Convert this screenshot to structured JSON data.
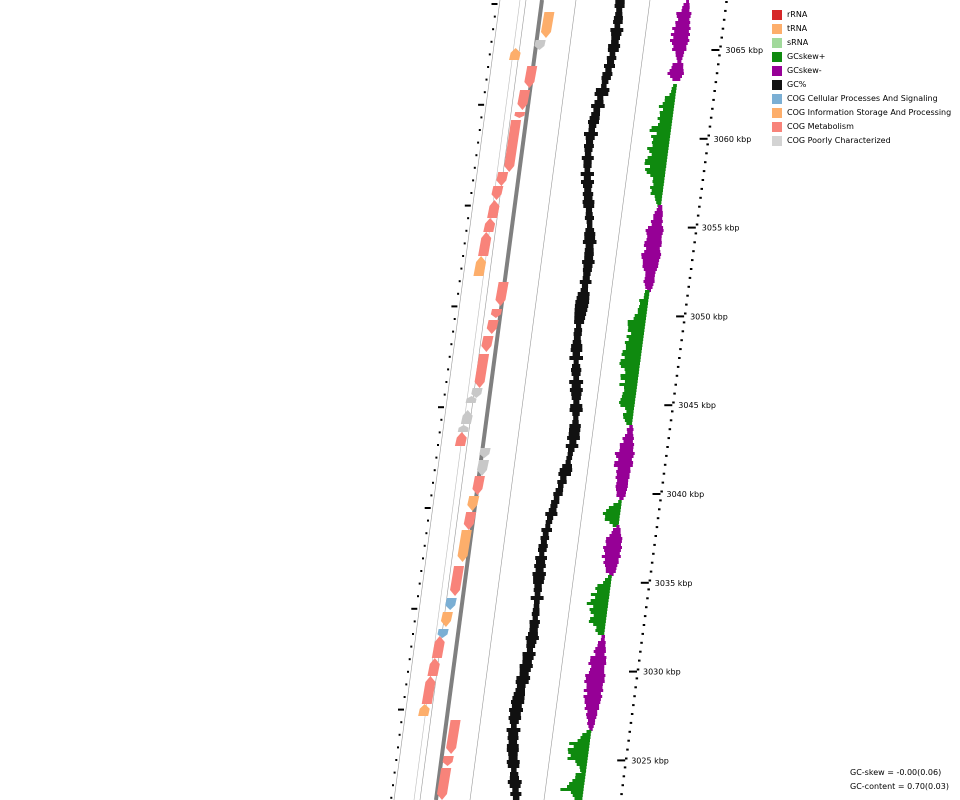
{
  "legend": [
    {
      "label": "rRNA",
      "color": "#d62728"
    },
    {
      "label": "tRNA",
      "color": "#fdae6b"
    },
    {
      "label": "sRNA",
      "color": "#a1d99b"
    },
    {
      "label": "GCskew+",
      "color": "#0f8a0f"
    },
    {
      "label": "GCskew-",
      "color": "#960096"
    },
    {
      "label": "GC%",
      "color": "#111111"
    },
    {
      "label": "COG Cellular Processes And Signaling",
      "color": "#7bafd4"
    },
    {
      "label": "COG Information Storage And Processing",
      "color": "#fdae6b"
    },
    {
      "label": "COG Metabolism",
      "color": "#f8837a"
    },
    {
      "label": "COG Poorly Characterized",
      "color": "#d3d3d3"
    }
  ],
  "ruler": {
    "unit": "kbp",
    "ticks": [
      {
        "value": 3065,
        "label": "3065 kbp"
      },
      {
        "value": 3060,
        "label": "3060 kbp"
      },
      {
        "value": 3055,
        "label": "3055 kbp"
      },
      {
        "value": 3050,
        "label": "3050 kbp"
      },
      {
        "value": 3045,
        "label": "3045 kbp"
      },
      {
        "value": 3040,
        "label": "3040 kbp"
      },
      {
        "value": 3035,
        "label": "3035 kbp"
      },
      {
        "value": 3030,
        "label": "3030 kbp"
      },
      {
        "value": 3025,
        "label": "3025 kbp"
      }
    ]
  },
  "stats": {
    "gc_skew": "GC-skew = -0.00(0.06)",
    "gc_content": "GC-content = 0.70(0.03)"
  }
}
